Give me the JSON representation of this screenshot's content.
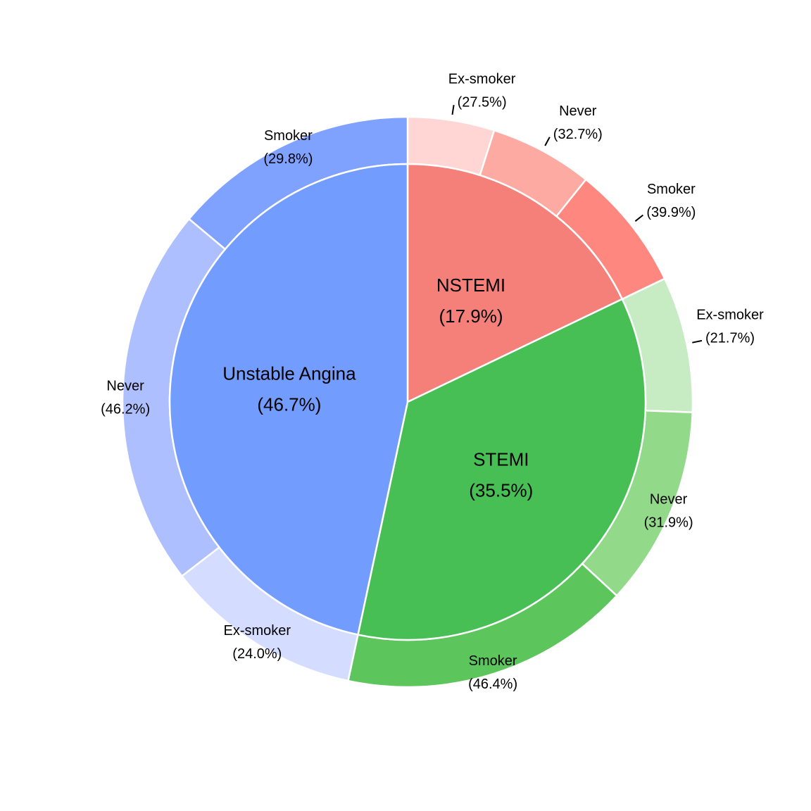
{
  "chart_data": {
    "type": "sunburst-pie",
    "title": "",
    "inner": [
      {
        "name": "NSTEMI",
        "value": 17.9,
        "label": "(17.9%)",
        "color": "#f5807a"
      },
      {
        "name": "STEMI",
        "value": 35.5,
        "label": "(35.5%)",
        "color": "#47bf55"
      },
      {
        "name": "Unstable Angina",
        "value": 46.7,
        "label": "(46.7%)",
        "color": "#739cff"
      }
    ],
    "outer": [
      {
        "parent": "NSTEMI",
        "name": "Ex-smoker",
        "share": 27.5,
        "label": "(27.5%)",
        "color": "#ffd6d3"
      },
      {
        "parent": "NSTEMI",
        "name": "Never",
        "share": 32.7,
        "label": "(32.7%)",
        "color": "#fdaaa2"
      },
      {
        "parent": "NSTEMI",
        "name": "Smoker",
        "share": 39.9,
        "label": "(39.9%)",
        "color": "#fe8780"
      },
      {
        "parent": "STEMI",
        "name": "Ex-smoker",
        "share": 21.7,
        "label": "(21.7%)",
        "color": "#c7ecc3"
      },
      {
        "parent": "STEMI",
        "name": "Never",
        "share": 31.9,
        "label": "(31.9%)",
        "color": "#92d98a"
      },
      {
        "parent": "STEMI",
        "name": "Smoker",
        "share": 46.4,
        "label": "(46.4%)",
        "color": "#5cc65d"
      },
      {
        "parent": "Unstable Angina",
        "name": "Ex-smoker",
        "share": 24.0,
        "label": "(24.0%)",
        "color": "#d4dcff"
      },
      {
        "parent": "Unstable Angina",
        "name": "Never",
        "share": 46.2,
        "label": "(46.2%)",
        "color": "#aebfff"
      },
      {
        "parent": "Unstable Angina",
        "name": "Smoker",
        "share": 29.8,
        "label": "(29.8%)",
        "color": "#7fa1ff"
      }
    ],
    "legend": "none",
    "direction": "clockwise-from-top"
  }
}
